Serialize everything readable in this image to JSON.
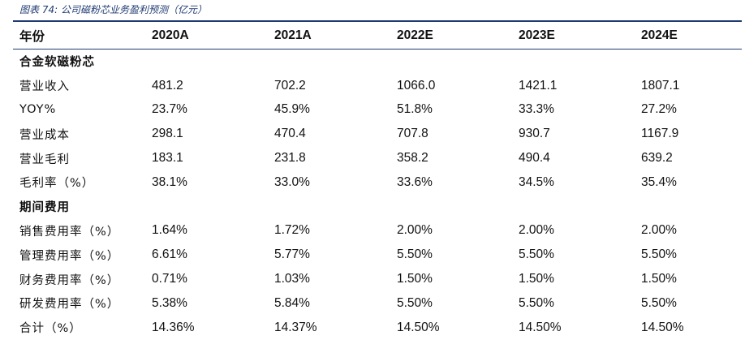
{
  "caption": "图表 74:  公司磁粉芯业务盈利预测（亿元）",
  "header": [
    "年份",
    "2020A",
    "2021A",
    "2022E",
    "2023E",
    "2024E"
  ],
  "sections": [
    {
      "title": "合金软磁粉芯",
      "rows": [
        {
          "label": "营业收入",
          "values": [
            "481.2",
            "702.2",
            "1066.0",
            "1421.1",
            "1807.1"
          ]
        },
        {
          "label": "YOY%",
          "values": [
            "23.7%",
            "45.9%",
            "51.8%",
            "33.3%",
            "27.2%"
          ]
        },
        {
          "label": "营业成本",
          "values": [
            "298.1",
            "470.4",
            "707.8",
            "930.7",
            "1167.9"
          ]
        },
        {
          "label": "营业毛利",
          "values": [
            "183.1",
            "231.8",
            "358.2",
            "490.4",
            "639.2"
          ]
        },
        {
          "label": "毛利率（%）",
          "values": [
            "38.1%",
            "33.0%",
            "33.6%",
            "34.5%",
            "35.4%"
          ]
        }
      ]
    },
    {
      "title": "期间费用",
      "rows": [
        {
          "label": "销售费用率（%）",
          "values": [
            "1.64%",
            "1.72%",
            "2.00%",
            "2.00%",
            "2.00%"
          ]
        },
        {
          "label": "管理费用率（%）",
          "values": [
            "6.61%",
            "5.77%",
            "5.50%",
            "5.50%",
            "5.50%"
          ]
        },
        {
          "label": "财务费用率（%）",
          "values": [
            "0.71%",
            "1.03%",
            "1.50%",
            "1.50%",
            "1.50%"
          ]
        },
        {
          "label": "研发费用率（%）",
          "values": [
            "5.38%",
            "5.84%",
            "5.50%",
            "5.50%",
            "5.50%"
          ]
        },
        {
          "label": "合计（%）",
          "values": [
            "14.36%",
            "14.37%",
            "14.50%",
            "14.50%",
            "14.50%"
          ]
        }
      ]
    }
  ]
}
